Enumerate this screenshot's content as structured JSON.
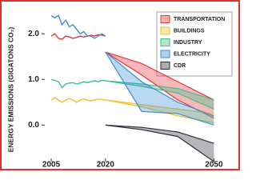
{
  "chart_data": {
    "type": "line",
    "y_label": "ENERGY EMISSIONS (GIGATONS CO₂)",
    "x": [
      2005,
      2006,
      2007,
      2008,
      2009,
      2010,
      2011,
      2012,
      2013,
      2014,
      2015,
      2016,
      2017,
      2018,
      2019,
      2020
    ],
    "band_x": [
      2020,
      2030,
      2040,
      2050
    ],
    "xlim": [
      2003,
      2055
    ],
    "xticks": [
      2005,
      2020,
      2050
    ],
    "ylim": [
      -0.8,
      2.6
    ],
    "yticks": [
      {
        "value": 0,
        "label": "0.0"
      },
      {
        "value": 1,
        "label": "1.0"
      },
      {
        "value": 2,
        "label": "2.0"
      }
    ],
    "series": [
      {
        "name": "TRANSPORTATION",
        "color": "#e8343a",
        "values": [
          1.95,
          2.0,
          1.9,
          1.88,
          1.95,
          1.93,
          1.9,
          1.92,
          1.95,
          1.93,
          1.95,
          1.97,
          1.95,
          1.98,
          1.97,
          1.95
        ],
        "band_low": [
          1.6,
          1.1,
          0.55,
          0.15
        ],
        "band_high": [
          1.6,
          1.35,
          0.95,
          0.55
        ]
      },
      {
        "name": "BUILDINGS",
        "color": "#f0c030",
        "values": [
          0.55,
          0.6,
          0.55,
          0.5,
          0.55,
          0.58,
          0.55,
          0.5,
          0.55,
          0.57,
          0.55,
          0.53,
          0.55,
          0.57,
          0.56,
          0.55
        ],
        "band_low": [
          0.55,
          0.4,
          0.2,
          0.05
        ],
        "band_high": [
          0.55,
          0.45,
          0.35,
          0.25
        ]
      },
      {
        "name": "INDUSTRY",
        "color": "#3dbf8a",
        "values": [
          1.0,
          0.98,
          0.95,
          0.82,
          0.9,
          0.92,
          0.93,
          0.9,
          0.92,
          0.95,
          0.93,
          0.95,
          0.97,
          0.95,
          0.98,
          0.97
        ],
        "band_low": [
          0.97,
          0.85,
          0.7,
          0.35
        ],
        "band_high": [
          0.97,
          0.9,
          0.8,
          0.55
        ]
      },
      {
        "name": "ELECTRICITY",
        "color": "#3a8fd6",
        "values": [
          2.4,
          2.35,
          2.4,
          2.2,
          2.3,
          2.15,
          2.2,
          2.1,
          2.0,
          2.05,
          1.95,
          1.95,
          1.9,
          1.95,
          2.0,
          1.95
        ],
        "band_low": [
          1.6,
          0.3,
          0.25,
          0.0
        ],
        "band_high": [
          1.6,
          0.95,
          0.5,
          0.2
        ]
      },
      {
        "name": "CDR",
        "color": "#2b2f3a",
        "band_low": [
          0,
          -0.1,
          -0.25,
          -0.8
        ],
        "band_high": [
          0,
          -0.05,
          -0.15,
          -0.4
        ]
      }
    ]
  }
}
